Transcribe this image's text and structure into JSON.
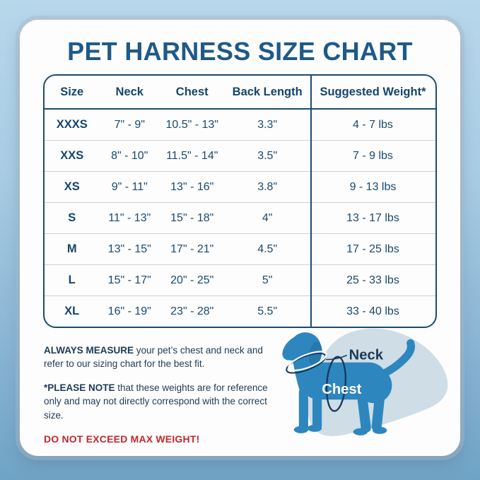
{
  "title": "PET HARNESS SIZE CHART",
  "table": {
    "headers": [
      "Size",
      "Neck",
      "Chest",
      "Back Length",
      "Suggested Weight*"
    ],
    "fields": [
      "size",
      "neck",
      "chest",
      "back_length",
      "weight"
    ],
    "rows": [
      {
        "size": "XXXS",
        "neck": "7\" - 9\"",
        "chest": "10.5\" - 13\"",
        "back_length": "3.3\"",
        "weight": "4 - 7 lbs"
      },
      {
        "size": "XXS",
        "neck": "8\" - 10\"",
        "chest": "11.5\" - 14\"",
        "back_length": "3.5\"",
        "weight": "7 - 9 lbs"
      },
      {
        "size": "XS",
        "neck": "9\" - 11\"",
        "chest": "13\" - 16\"",
        "back_length": "3.8\"",
        "weight": "9 - 13 lbs"
      },
      {
        "size": "S",
        "neck": "11\" - 13\"",
        "chest": "15\" - 18\"",
        "back_length": "4\"",
        "weight": "13 - 17 lbs"
      },
      {
        "size": "M",
        "neck": "13\" - 15\"",
        "chest": "17\" - 21\"",
        "back_length": "4.5\"",
        "weight": "17 - 25 lbs"
      },
      {
        "size": "L",
        "neck": "15\" - 17\"",
        "chest": "20\" - 25\"",
        "back_length": "5\"",
        "weight": "25 - 33 lbs"
      },
      {
        "size": "XL",
        "neck": "16\" - 19\"",
        "chest": "23\" - 28\"",
        "back_length": "5.5\"",
        "weight": "33 - 40 lbs"
      }
    ]
  },
  "chart_data": {
    "type": "table",
    "title": "PET HARNESS SIZE CHART",
    "columns": [
      "Size",
      "Neck",
      "Chest",
      "Back Length",
      "Suggested Weight*"
    ],
    "rows": [
      [
        "XXXS",
        "7\" - 9\"",
        "10.5\" - 13\"",
        "3.3\"",
        "4 - 7 lbs"
      ],
      [
        "XXS",
        "8\" - 10\"",
        "11.5\" - 14\"",
        "3.5\"",
        "7 - 9 lbs"
      ],
      [
        "XS",
        "9\" - 11\"",
        "13\" - 16\"",
        "3.8\"",
        "9 - 13 lbs"
      ],
      [
        "S",
        "11\" - 13\"",
        "15\" - 18\"",
        "4\"",
        "13 - 17 lbs"
      ],
      [
        "M",
        "13\" - 15\"",
        "17\" - 21\"",
        "4.5\"",
        "17 - 25 lbs"
      ],
      [
        "L",
        "15\" - 17\"",
        "20\" - 25\"",
        "5\"",
        "25 - 33 lbs"
      ],
      [
        "XL",
        "16\" - 19\"",
        "23\" - 28\"",
        "5.5\"",
        "33 - 40 lbs"
      ]
    ]
  },
  "notes": {
    "measure_bold": "ALWAYS MEASURE",
    "measure_text": " your pet’s chest and neck and refer to our sizing chart for the best fit.",
    "please_bold": "*PLEASE NOTE",
    "please_text": " that these weights are for reference only and may not directly correspond with the correct size."
  },
  "warning": "DO NOT EXCEED MAX WEIGHT!",
  "diagram": {
    "neck_label": "Neck",
    "chest_label": "Chest"
  },
  "colors": {
    "title_blue": "#1e5a88",
    "table_navy": "#1c4a6e",
    "warning_red": "#c5262c",
    "dog_blue": "#2e86be",
    "blob_blue_gray": "#cfdde6",
    "background_blue": "#a9cde4"
  }
}
